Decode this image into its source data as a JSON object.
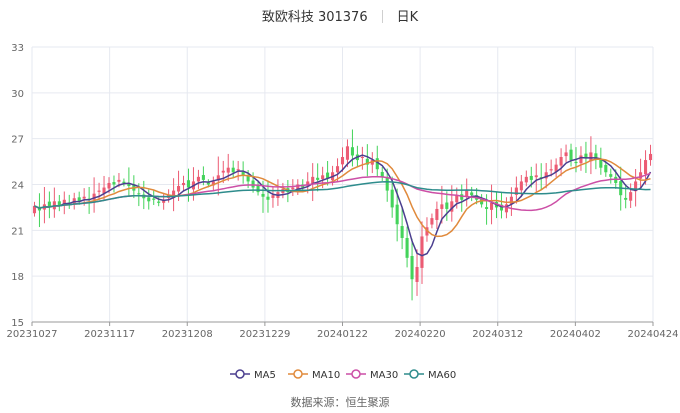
{
  "header": {
    "title": "致欧科技 301376",
    "period": "日K"
  },
  "source": {
    "label": "数据来源：",
    "name": "恒生聚源"
  },
  "colors": {
    "up": "#ec5b73",
    "down": "#43d35a",
    "grid": "#e6e9f0",
    "ma5": "#4b3f8f",
    "ma10": "#e08a3c",
    "ma30": "#cc4fa6",
    "ma60": "#2e8c8c"
  },
  "chart_data": {
    "type": "candlestick",
    "title": "致欧科技 301376",
    "ylim": [
      15,
      33
    ],
    "yticks": [
      15,
      18,
      21,
      24,
      27,
      30,
      33
    ],
    "xticks": [
      "20231027",
      "20231117",
      "20231208",
      "20231229",
      "20240122",
      "20240220",
      "20240312",
      "20240402",
      "20240424"
    ],
    "legend": [
      "MA5",
      "MA10",
      "MA30",
      "MA60"
    ],
    "legend_position": "bottom",
    "close": [
      22.6,
      22.3,
      22.7,
      22.5,
      22.9,
      22.6,
      23.0,
      22.8,
      23.1,
      22.9,
      23.2,
      23.0,
      23.4,
      23.6,
      23.8,
      24.1,
      24.0,
      24.3,
      24.1,
      23.9,
      23.6,
      23.4,
      23.1,
      22.9,
      23.0,
      22.8,
      23.0,
      23.3,
      23.6,
      23.9,
      24.1,
      23.8,
      24.2,
      24.5,
      24.3,
      24.0,
      24.2,
      24.6,
      24.9,
      25.1,
      24.8,
      25.0,
      24.6,
      24.2,
      23.8,
      23.5,
      23.2,
      23.0,
      23.3,
      23.5,
      23.7,
      23.5,
      23.8,
      24.0,
      23.8,
      24.2,
      24.5,
      24.3,
      24.6,
      24.4,
      24.8,
      25.2,
      25.8,
      26.5,
      25.9,
      25.6,
      25.8,
      25.3,
      25.6,
      25.0,
      24.5,
      23.6,
      22.5,
      21.4,
      20.5,
      19.2,
      17.8,
      18.6,
      20.6,
      21.2,
      21.8,
      22.4,
      22.7,
      22.4,
      22.9,
      23.3,
      23.0,
      23.6,
      23.3,
      23.0,
      22.7,
      22.4,
      22.8,
      22.5,
      22.3,
      22.7,
      23.2,
      23.8,
      24.2,
      24.5,
      24.3,
      24.6,
      24.4,
      24.8,
      25.0,
      25.3,
      25.8,
      26.1,
      25.6,
      25.4,
      25.9,
      25.7,
      26.1,
      25.6,
      25.1,
      24.8,
      24.5,
      24.1,
      23.3,
      23.0,
      23.5,
      24.2,
      24.8,
      25.6,
      26.0
    ]
  }
}
